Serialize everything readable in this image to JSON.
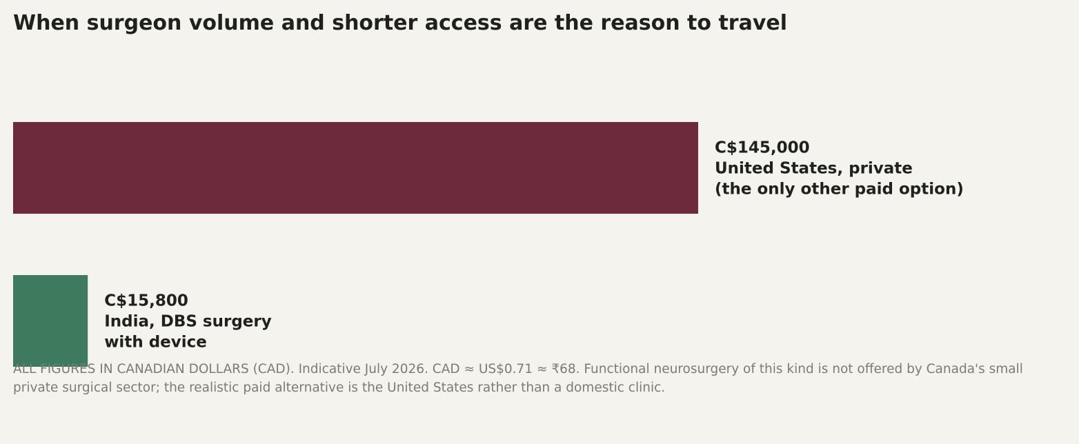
{
  "chart_data": {
    "type": "bar",
    "orientation": "horizontal",
    "title": "When surgeon volume and shorter access are the reason to travel",
    "categories": [
      [
        "United States, private",
        "(the only other paid option)"
      ],
      [
        "India, DBS surgery",
        "with device"
      ]
    ],
    "values": [
      145000,
      15800
    ],
    "value_labels": [
      "C$145,000",
      "C$15,800"
    ],
    "colors": [
      "#6d2a3c",
      "#3d7a5e"
    ],
    "footnote": "ALL FIGURES IN CANADIAN DOLLARS (CAD). Indicative July 2026. CAD ≈ US$0.71 ≈ ₹68. Functional neurosurgery of this kind is not offered by Canada's small private surgical sector; the realistic paid alternative is the United States rather than a domestic clinic."
  }
}
